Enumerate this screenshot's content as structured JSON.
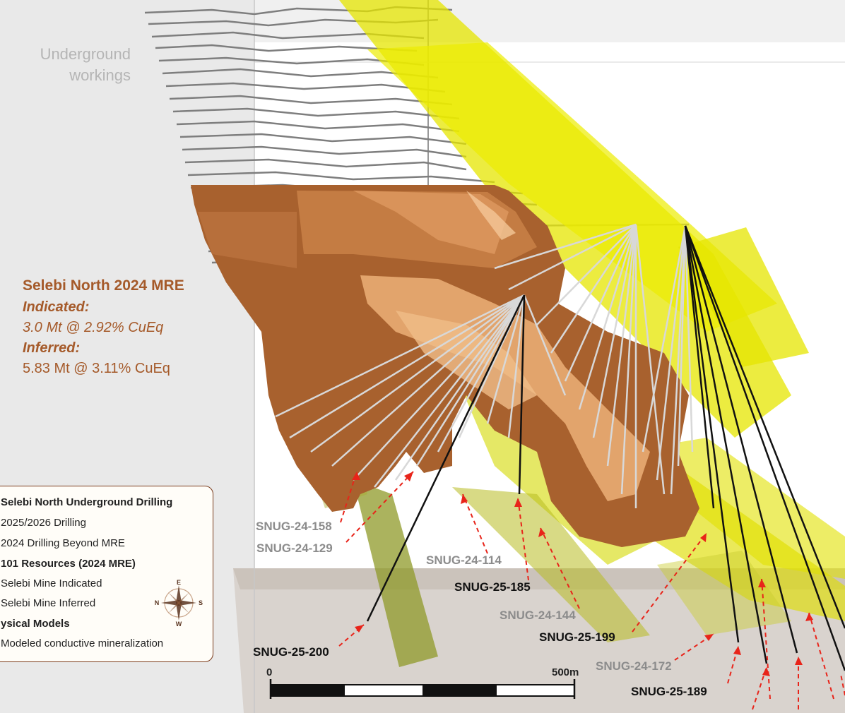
{
  "labels": {
    "underground": [
      "Underground",
      "workings"
    ],
    "mre": {
      "title": "Selebi North 2024 MRE",
      "indicated_label": "Indicated:",
      "indicated_value": "3.0 Mt @ 2.92% CuEq",
      "inferred_label": "Inferred:",
      "inferred_value": "5.83 Mt @ 3.11% CuEq"
    }
  },
  "holes": [
    {
      "id": "SNUG-24-158",
      "style": "grey"
    },
    {
      "id": "SNUG-24-129",
      "style": "grey"
    },
    {
      "id": "SNUG-24-114",
      "style": "grey"
    },
    {
      "id": "SNUG-25-185",
      "style": "black"
    },
    {
      "id": "SNUG-24-144",
      "style": "grey"
    },
    {
      "id": "SNUG-25-199",
      "style": "black"
    },
    {
      "id": "SNUG-25-200",
      "style": "black"
    },
    {
      "id": "SNUG-24-172",
      "style": "grey"
    },
    {
      "id": "SNUG-25-189",
      "style": "black"
    }
  ],
  "legend": {
    "heading": "Selebi North Underground Drilling",
    "item1": "2025/2026 Drilling",
    "item2": "2024 Drilling Beyond MRE",
    "heading2": "101 Resources (2024 MRE)",
    "item3": "Selebi Mine Indicated",
    "item4": "Selebi Mine Inferred",
    "heading3": "ysical Models",
    "item5": "Modeled conductive mineralization"
  },
  "compass": {
    "n": "N",
    "s": "S",
    "e": "E",
    "w": "W"
  },
  "scale": {
    "start": "0",
    "end": "500m"
  },
  "colors": {
    "orebody": "#b06a35",
    "orebody_light": "#e0a06a",
    "conductor": "#e6e600",
    "conductor_dark": "#9aa02a",
    "drill_black": "#111111",
    "drill_grey": "#d0d0d0",
    "arrow": "#e8241a",
    "legend_border": "#7a3a1a"
  }
}
